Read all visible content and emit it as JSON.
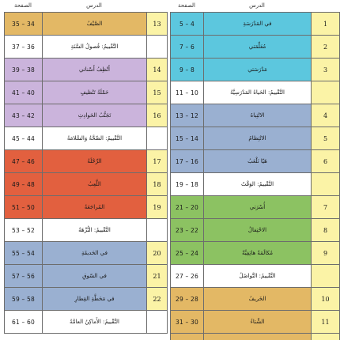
{
  "headers": {
    "left_page": "الصفحة",
    "left_lesson": "الدرس",
    "right_page": "الصفحة",
    "right_lesson": "الدرس"
  },
  "colors": {
    "yellow_num": "#fbf3a6",
    "gold": "#e3b865",
    "cyan": "#5cc7de",
    "lavender": "#cbb4dc",
    "blue_grey": "#9ab0d1",
    "red_orange": "#e2603f",
    "green": "#8cc262",
    "white": "#ffffff"
  },
  "left_rows": [
    {
      "pages": "35 – 34",
      "title": "الصَّيْفُ",
      "num": "13",
      "color": "#e3b865",
      "num_color": "#fbf3a6"
    },
    {
      "pages": "37 – 36",
      "title": "التَّقْييمُ: فُصولُ السَّنَةِ",
      "num": "",
      "color": "#ffffff",
      "num_color": "#ffffff"
    },
    {
      "pages": "39 – 38",
      "title": "أَنْظِفُ أَسْناني",
      "num": "14",
      "color": "#cbb4dc",
      "num_color": "#fbf3a6"
    },
    {
      "pages": "41 – 40",
      "title": "حَمْلَةُ تَنْظيفٍ",
      "num": "15",
      "color": "#cbb4dc",
      "num_color": "#fbf3a6"
    },
    {
      "pages": "43 – 42",
      "title": "تَجَنُّبُ الحَوادِثِ",
      "num": "16",
      "color": "#cbb4dc",
      "num_color": "#fbf3a6"
    },
    {
      "pages": "45 – 44",
      "title": "التَّقْييمُ: الصِّحَّةُ وَالسَّلامَةُ",
      "num": "",
      "color": "#ffffff",
      "num_color": "#ffffff"
    },
    {
      "pages": "47 – 46",
      "title": "الرِّحْلَةُ",
      "num": "17",
      "color": "#e2603f",
      "num_color": "#fbf3a6"
    },
    {
      "pages": "49 – 48",
      "title": "اللَّعِبُ",
      "num": "18",
      "color": "#e2603f",
      "num_color": "#fbf3a6"
    },
    {
      "pages": "51 – 50",
      "title": "المُراجَعَةُ",
      "num": "19",
      "color": "#e2603f",
      "num_color": "#fbf3a6"
    },
    {
      "pages": "53 – 52",
      "title": "التَّقْييمُ: النُّزْهَةُ",
      "num": "",
      "color": "#ffffff",
      "num_color": "#ffffff"
    },
    {
      "pages": "55 – 54",
      "title": "في الحَديقَةِ",
      "num": "20",
      "color": "#9ab0d1",
      "num_color": "#fbf3a6"
    },
    {
      "pages": "57 – 56",
      "title": "في السّوقِ",
      "num": "21",
      "color": "#9ab0d1",
      "num_color": "#fbf3a6"
    },
    {
      "pages": "59 – 58",
      "title": "في مَحَطَّةِ القِطارِ",
      "num": "22",
      "color": "#9ab0d1",
      "num_color": "#fbf3a6"
    },
    {
      "pages": "61 – 60",
      "title": "التَّقْييمُ: الأَماكِنُ العامَّةُ",
      "num": "",
      "color": "#ffffff",
      "num_color": "#ffffff"
    }
  ],
  "right_rows": [
    {
      "pages": "5 – 4",
      "title": "في المَدْرَسَةِ",
      "num": "1",
      "color": "#5cc7de",
      "num_color": "#fbf3a6"
    },
    {
      "pages": "7 – 6",
      "title": "مُعَلِّمَتي",
      "num": "2",
      "color": "#5cc7de",
      "num_color": "#fbf3a6"
    },
    {
      "pages": "9 – 8",
      "title": "مَدْرَسَتي",
      "num": "3",
      "color": "#5cc7de",
      "num_color": "#fbf3a6"
    },
    {
      "pages": "11 – 10",
      "title": "التَّقْييمُ: الحَياةُ المَدْرَسِيَّةُ",
      "num": "",
      "color": "#ffffff",
      "num_color": "#fbf3a6"
    },
    {
      "pages": "13 – 12",
      "title": "الانْتِباهُ",
      "num": "4",
      "color": "#9ab0d1",
      "num_color": "#fbf3a6"
    },
    {
      "pages": "15 – 14",
      "title": "الانْتِظامُ",
      "num": "5",
      "color": "#9ab0d1",
      "num_color": "#fbf3a6"
    },
    {
      "pages": "17 – 16",
      "title": "هَيّا نَلْعَبُ",
      "num": "6",
      "color": "#9ab0d1",
      "num_color": "#fbf3a6"
    },
    {
      "pages": "19 – 18",
      "title": "التَّقْييمُ: الوَقْتُ",
      "num": "",
      "color": "#ffffff",
      "num_color": "#fbf3a6"
    },
    {
      "pages": "21 – 20",
      "title": "أُسْرَتي",
      "num": "7",
      "color": "#8cc262",
      "num_color": "#fbf3a6"
    },
    {
      "pages": "23 – 22",
      "title": "الاحْتِفالُ",
      "num": "8",
      "color": "#8cc262",
      "num_color": "#fbf3a6"
    },
    {
      "pages": "25 – 24",
      "title": "مُكالَمَةٌ هاتِفِيَّةٌ",
      "num": "9",
      "color": "#8cc262",
      "num_color": "#fbf3a6"
    },
    {
      "pages": "27 – 26",
      "title": "التَّقْييمُ: التَّواصُلُ",
      "num": "",
      "color": "#ffffff",
      "num_color": "#fbf3a6"
    },
    {
      "pages": "29 – 28",
      "title": "الخَريفُ",
      "num": "10",
      "color": "#e3b865",
      "num_color": "#fbf3a6"
    },
    {
      "pages": "31 – 30",
      "title": "الشِّتاءُ",
      "num": "11",
      "color": "#e3b865",
      "num_color": "#fbf3a6"
    },
    {
      "pages": "33 – 32",
      "title": "الرَّبيعُ",
      "num": "12",
      "color": "#e3b865",
      "num_color": "#fbf3a6"
    }
  ]
}
